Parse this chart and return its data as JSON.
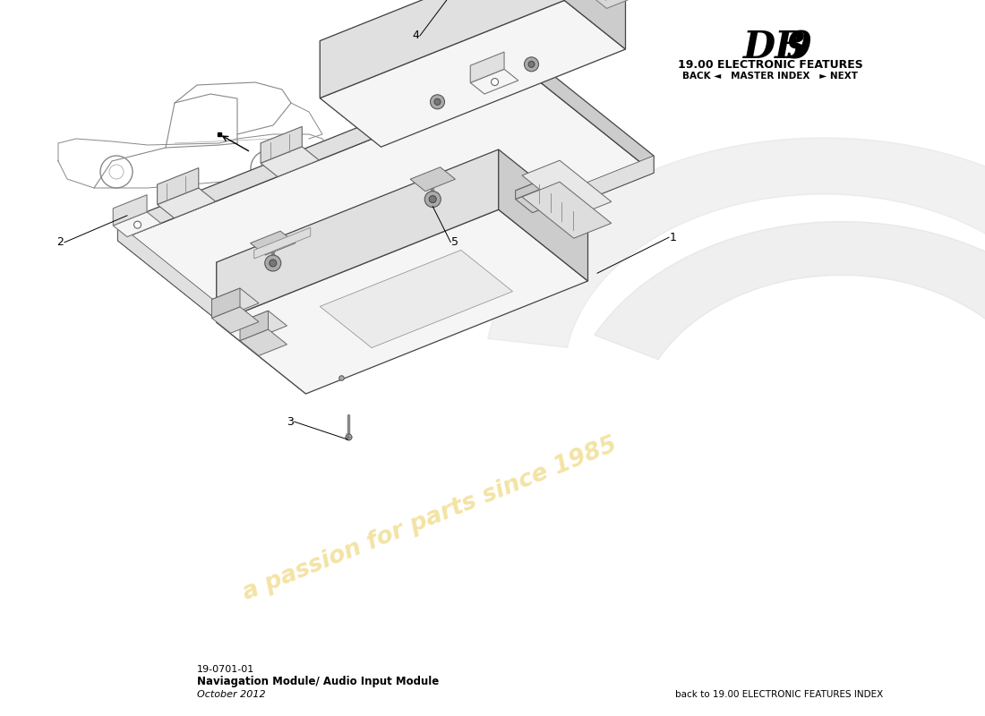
{
  "title_db": "DB",
  "title_9": "9",
  "subtitle": "19.00 ELECTRONIC FEATURES",
  "nav_text": "BACK ◄   MASTER INDEX   ► NEXT",
  "part_number": "19-0701-01",
  "part_name": "Naviagation Module/ Audio Input Module",
  "date": "October 2012",
  "footer_right": "back to 19.00 ELECTRONIC FEATURES INDEX",
  "background_color": "#ffffff",
  "line_color": "#444444",
  "fill_light": "#f5f5f5",
  "fill_mid": "#e0e0e0",
  "fill_dark": "#cccccc",
  "watermark_color": "#e8c84a",
  "watermark_alpha": 0.5,
  "watermark_text": "a passion for parts since 1985"
}
